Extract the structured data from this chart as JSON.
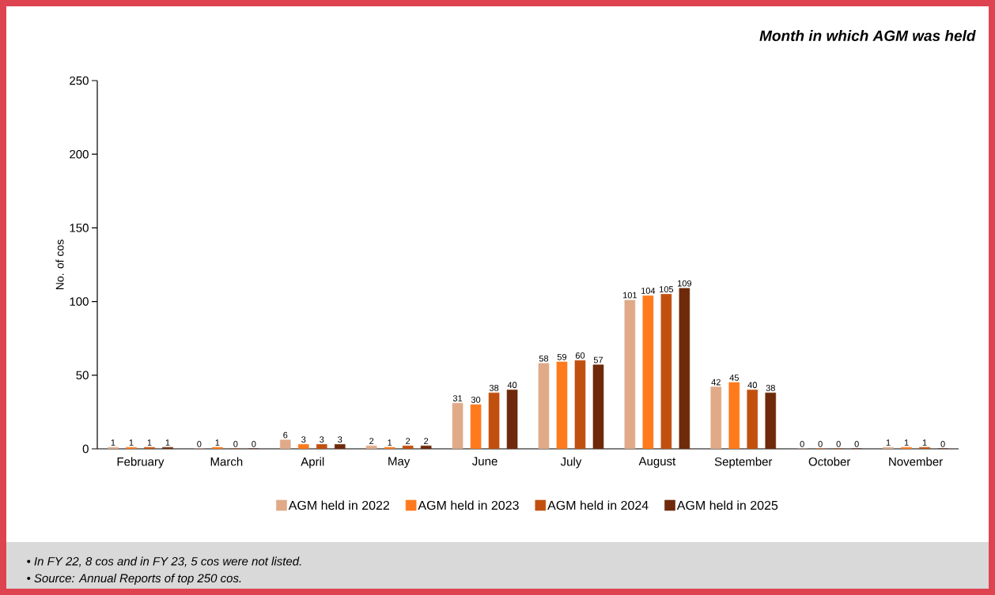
{
  "chart_data": {
    "type": "bar",
    "title": "Month in which AGM was held",
    "ylabel": "No. of cos",
    "categories": [
      "February",
      "March",
      "April",
      "May",
      "June",
      "July",
      "August",
      "September",
      "October",
      "November"
    ],
    "series": [
      {
        "name": "AGM held in 2022",
        "color": "#e0aa88",
        "values": [
          1,
          0,
          6,
          2,
          31,
          58,
          101,
          42,
          0,
          1
        ]
      },
      {
        "name": "AGM held in 2023",
        "color": "#ff7a1c",
        "values": [
          1,
          1,
          3,
          1,
          30,
          59,
          104,
          45,
          0,
          1
        ]
      },
      {
        "name": "AGM held in 2024",
        "color": "#c1500f",
        "values": [
          1,
          0,
          3,
          2,
          38,
          60,
          105,
          40,
          0,
          1
        ]
      },
      {
        "name": "AGM held in 2025",
        "color": "#6e2a0a",
        "values": [
          1,
          0,
          3,
          2,
          40,
          57,
          109,
          38,
          0,
          0
        ]
      }
    ],
    "ylim": [
      0,
      250
    ],
    "yticks": [
      0,
      50,
      100,
      150,
      200,
      250
    ],
    "grid": false,
    "legend": "bottom",
    "data_labels": true,
    "annotations": [
      "• In FY 22, 8 cos and in FY 23, 5 cos were not listed.",
      "• Source: Annual Reports of top 250 cos."
    ]
  }
}
